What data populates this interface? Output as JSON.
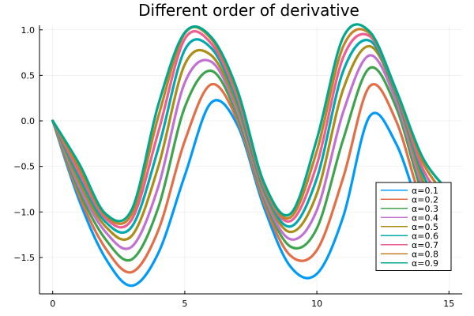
{
  "chart_data": {
    "type": "line",
    "title": "Different order of derivative",
    "xlabel": "",
    "ylabel": "",
    "xlim": [
      -0.5,
      15.5
    ],
    "ylim": [
      -1.9,
      1.05
    ],
    "x_ticks": [
      0,
      5,
      10,
      15
    ],
    "x_tick_labels": [
      "0",
      "5",
      "10",
      "15"
    ],
    "y_ticks": [
      1.0,
      0.5,
      0.0,
      -0.5,
      -1.0,
      -1.5
    ],
    "y_tick_labels": [
      "1.0",
      "0.5",
      "0.0",
      "−0.5",
      "−1.0",
      "−1.5"
    ],
    "grid": true,
    "legend_position": "bottom-right",
    "x": [
      0,
      1,
      2,
      3,
      4,
      5,
      6,
      7,
      8,
      9,
      10,
      11,
      12,
      13,
      14,
      15
    ],
    "series": [
      {
        "name": "α=0.1",
        "color": "#009AFA",
        "values": [
          0.0,
          -0.87,
          -1.51,
          -1.81,
          -1.45,
          -0.6,
          0.2,
          -0.05,
          -0.95,
          -1.6,
          -1.68,
          -1.05,
          0.05,
          -0.25,
          -1.05,
          -1.55
        ]
      },
      {
        "name": "α=0.2",
        "color": "#E36F47",
        "values": [
          0.0,
          -0.82,
          -1.4,
          -1.66,
          -1.2,
          -0.22,
          0.4,
          0.0,
          -0.9,
          -1.48,
          -1.42,
          -0.62,
          0.38,
          -0.0,
          -0.92,
          -1.45
        ]
      },
      {
        "name": "α=0.3",
        "color": "#3EA44E",
        "values": [
          0.0,
          -0.77,
          -1.3,
          -1.52,
          -0.95,
          0.15,
          0.55,
          0.05,
          -0.85,
          -1.38,
          -1.18,
          -0.2,
          0.58,
          0.15,
          -0.8,
          -1.35
        ]
      },
      {
        "name": "α=0.4",
        "color": "#C271D2",
        "values": [
          0.0,
          -0.72,
          -1.22,
          -1.38,
          -0.72,
          0.42,
          0.65,
          0.1,
          -0.82,
          -1.3,
          -0.98,
          0.1,
          0.72,
          0.22,
          -0.72,
          -1.25
        ]
      },
      {
        "name": "α=0.5",
        "color": "#AC8D18",
        "values": [
          0.0,
          -0.67,
          -1.16,
          -1.26,
          -0.5,
          0.62,
          0.72,
          0.15,
          -0.78,
          -1.22,
          -0.8,
          0.35,
          0.82,
          0.28,
          -0.65,
          -1.15
        ]
      },
      {
        "name": "α=0.6",
        "color": "#00A9AD",
        "values": [
          0.0,
          -0.62,
          -1.11,
          -1.16,
          -0.3,
          0.78,
          0.8,
          0.2,
          -0.75,
          -1.16,
          -0.63,
          0.55,
          0.88,
          0.3,
          -0.58,
          -1.05
        ]
      },
      {
        "name": "α=0.7",
        "color": "#ED5E93",
        "values": [
          0.0,
          -0.57,
          -1.07,
          -1.08,
          -0.12,
          0.9,
          0.85,
          0.25,
          -0.72,
          -1.1,
          -0.48,
          0.7,
          0.93,
          0.32,
          -0.52,
          -0.95
        ]
      },
      {
        "name": "α=0.8",
        "color": "#C68225",
        "values": [
          0.0,
          -0.52,
          -1.04,
          -1.02,
          0.05,
          0.96,
          0.9,
          0.3,
          -0.7,
          -1.06,
          -0.33,
          0.82,
          0.96,
          0.33,
          -0.45,
          -0.86
        ]
      },
      {
        "name": "α=0.9",
        "color": "#00A98D",
        "values": [
          0.0,
          -0.47,
          -1.02,
          -0.97,
          0.18,
          0.97,
          0.92,
          0.33,
          -0.68,
          -1.02,
          -0.2,
          0.92,
          0.98,
          0.34,
          -0.4,
          -0.78
        ]
      }
    ]
  }
}
